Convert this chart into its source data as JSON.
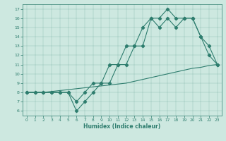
{
  "bg_color": "#cde8e0",
  "line_color": "#2e7d6e",
  "xlabel": "Humidex (Indice chaleur)",
  "xlim": [
    -0.5,
    23.5
  ],
  "ylim": [
    5.5,
    17.5
  ],
  "yticks": [
    6,
    7,
    8,
    9,
    10,
    11,
    12,
    13,
    14,
    15,
    16,
    17
  ],
  "xticks": [
    0,
    1,
    2,
    3,
    4,
    5,
    6,
    7,
    8,
    9,
    10,
    11,
    12,
    13,
    14,
    15,
    16,
    17,
    18,
    19,
    20,
    21,
    22,
    23
  ],
  "line1_x": [
    0,
    1,
    2,
    3,
    4,
    5,
    6,
    7,
    8,
    9,
    10,
    11,
    12,
    13,
    14,
    15,
    16,
    17,
    18,
    19,
    20,
    21,
    22,
    23
  ],
  "line1_y": [
    8.0,
    8.0,
    8.0,
    8.1,
    8.2,
    8.3,
    8.4,
    8.5,
    8.6,
    8.7,
    8.8,
    8.9,
    9.0,
    9.2,
    9.4,
    9.6,
    9.8,
    10.0,
    10.2,
    10.4,
    10.6,
    10.7,
    10.9,
    11.0
  ],
  "line2_x": [
    0,
    1,
    2,
    3,
    4,
    5,
    6,
    7,
    8,
    9,
    10,
    11,
    12,
    13,
    14,
    15,
    16,
    17,
    18,
    19,
    20,
    21,
    22,
    23
  ],
  "line2_y": [
    8,
    8,
    8,
    8,
    8,
    8,
    7,
    8,
    9,
    9,
    11,
    11,
    13,
    13,
    13,
    16,
    16,
    17,
    16,
    16,
    16,
    14,
    13,
    11
  ],
  "line3_x": [
    0,
    1,
    2,
    3,
    4,
    5,
    6,
    7,
    8,
    9,
    10,
    11,
    12,
    13,
    14,
    15,
    16,
    17,
    18,
    19,
    20,
    21,
    22,
    23
  ],
  "line3_y": [
    8,
    8,
    8,
    8,
    8,
    8,
    6,
    7,
    8,
    9,
    9,
    11,
    11,
    13,
    15,
    16,
    15,
    16,
    15,
    16,
    16,
    14,
    12,
    11
  ]
}
